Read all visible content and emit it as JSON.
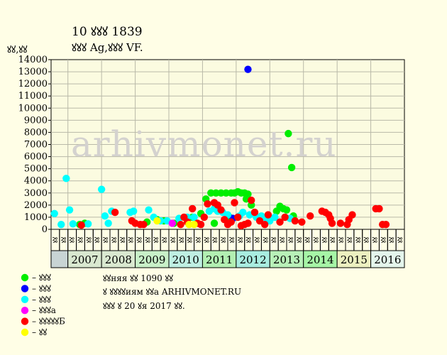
{
  "header": {
    "title": "10 ꙋꙋꙋ 1839",
    "subtitle": "ꙋꙋꙋ Ag,ꙋꙋꙋ VF.",
    "y_unit": "ꙋꙋ,ꙋꙋ"
  },
  "watermark": "arhivmonet.ru",
  "notes": [
    "ꙋꙋняя ꙋꙋ 1090 ꙋꙋ",
    "ꙋ ꙋꙋꙋꙋиям ꙋꙋа ARHIVMONET.RU",
    "ꙋꙋꙋ ꙋ 20 ꙋя 2017 ꙋꙋ."
  ],
  "legend": [
    {
      "label": "– ꙋꙋꙋ",
      "color": "#00ee00",
      "icon": "green-dot-icon"
    },
    {
      "label": "– ꙋꙋꙋ",
      "color": "#0000ff",
      "icon": "blue-dot-icon"
    },
    {
      "label": "– ꙋꙋꙋ",
      "color": "#00ffff",
      "icon": "cyan-dot-icon"
    },
    {
      "label": "– ꙋꙋꙋа",
      "color": "#ff00ff",
      "icon": "magenta-dot-icon"
    },
    {
      "label": "– ꙋꙋꙋꙋꙋБ",
      "color": "#ff0000",
      "icon": "red-dot-icon"
    },
    {
      "label": "– ꙋꙋ",
      "color": "#ffff00",
      "icon": "yellow-dot-icon"
    }
  ],
  "chart_data": {
    "type": "scatter",
    "ylim": [
      0,
      14000
    ],
    "yticks": [
      0,
      1000,
      2000,
      3000,
      4000,
      5000,
      6000,
      7000,
      8000,
      9000,
      10000,
      11000,
      12000,
      13000,
      14000
    ],
    "grid": true,
    "x_range": [
      2006.5,
      2017.0
    ],
    "quarter_labels": [
      "ꙋꙋ",
      "ꙋꙋ",
      "ꙋꙋ",
      "ꙋꙋ"
    ],
    "years": [
      {
        "label": "2007",
        "color": "#d9e8d0"
      },
      {
        "label": "2008",
        "color": "#d9e8d0"
      },
      {
        "label": "2009",
        "color": "#c8f0c8"
      },
      {
        "label": "2010",
        "color": "#bfefe3"
      },
      {
        "label": "2011",
        "color": "#b2efb2"
      },
      {
        "label": "2012",
        "color": "#a8ece0"
      },
      {
        "label": "2013",
        "color": "#b8f0b8"
      },
      {
        "label": "2014",
        "color": "#a6f5a6"
      },
      {
        "label": "2015",
        "color": "#ecf0c0"
      },
      {
        "label": "2016",
        "color": "#e4f5ec"
      }
    ],
    "colors": {
      "green": "#00ee00",
      "blue": "#0000ff",
      "cyan": "#00ffff",
      "magenta": "#ff00ff",
      "red": "#ff0000",
      "yellow": "#ffff00"
    },
    "series": [
      {
        "key": "green",
        "points": [
          [
            2007.35,
            400
          ],
          [
            2007.5,
            500
          ],
          [
            2009.35,
            600
          ],
          [
            2009.65,
            800
          ],
          [
            2009.85,
            700
          ],
          [
            2010.15,
            500
          ],
          [
            2010.7,
            1000
          ],
          [
            2010.95,
            1300
          ],
          [
            2011.1,
            2500
          ],
          [
            2011.25,
            3000
          ],
          [
            2011.35,
            500
          ],
          [
            2011.4,
            3000
          ],
          [
            2011.55,
            3000
          ],
          [
            2011.7,
            3000
          ],
          [
            2011.8,
            1000
          ],
          [
            2011.85,
            3000
          ],
          [
            2011.95,
            3000
          ],
          [
            2012.05,
            3100
          ],
          [
            2012.15,
            3000
          ],
          [
            2012.25,
            3000
          ],
          [
            2012.3,
            2500
          ],
          [
            2012.35,
            2900
          ],
          [
            2012.45,
            2000
          ],
          [
            2012.55,
            1400
          ],
          [
            2013.2,
            1500
          ],
          [
            2013.3,
            1900
          ],
          [
            2013.4,
            1700
          ],
          [
            2013.5,
            1600
          ],
          [
            2013.55,
            7900
          ],
          [
            2013.65,
            5100
          ],
          [
            2013.7,
            1100
          ]
        ]
      },
      {
        "key": "blue",
        "points": [
          [
            2011.9,
            900
          ],
          [
            2012.35,
            13200
          ]
        ]
      },
      {
        "key": "cyan",
        "points": [
          [
            2006.6,
            1300
          ],
          [
            2006.8,
            400
          ],
          [
            2006.95,
            4200
          ],
          [
            2007.05,
            1600
          ],
          [
            2007.15,
            450
          ],
          [
            2007.6,
            450
          ],
          [
            2008.0,
            3300
          ],
          [
            2008.1,
            1100
          ],
          [
            2008.2,
            500
          ],
          [
            2008.3,
            1500
          ],
          [
            2008.85,
            1400
          ],
          [
            2008.95,
            1500
          ],
          [
            2009.4,
            1600
          ],
          [
            2009.55,
            1000
          ],
          [
            2009.75,
            700
          ],
          [
            2009.95,
            700
          ],
          [
            2010.3,
            900
          ],
          [
            2010.55,
            1000
          ],
          [
            2010.75,
            1000
          ],
          [
            2011.2,
            1500
          ],
          [
            2011.35,
            1700
          ],
          [
            2011.45,
            1500
          ],
          [
            2011.6,
            1400
          ],
          [
            2011.75,
            1200
          ],
          [
            2012.1,
            1100
          ],
          [
            2012.2,
            1400
          ],
          [
            2012.4,
            1200
          ],
          [
            2012.6,
            1000
          ],
          [
            2012.75,
            1100
          ],
          [
            2012.9,
            900
          ],
          [
            2013.0,
            700
          ],
          [
            2013.15,
            1000
          ],
          [
            2013.45,
            1000
          ],
          [
            2013.6,
            900
          ]
        ]
      },
      {
        "key": "magenta",
        "points": [
          [
            2010.1,
            500
          ]
        ]
      },
      {
        "key": "red",
        "points": [
          [
            2007.4,
            350
          ],
          [
            2008.4,
            1400
          ],
          [
            2008.9,
            700
          ],
          [
            2009.0,
            500
          ],
          [
            2009.15,
            400
          ],
          [
            2009.25,
            400
          ],
          [
            2010.35,
            400
          ],
          [
            2010.45,
            1000
          ],
          [
            2010.55,
            600
          ],
          [
            2010.7,
            1700
          ],
          [
            2010.85,
            500
          ],
          [
            2010.95,
            400
          ],
          [
            2011.05,
            1000
          ],
          [
            2011.15,
            2100
          ],
          [
            2011.35,
            2200
          ],
          [
            2011.45,
            2000
          ],
          [
            2011.55,
            1600
          ],
          [
            2011.65,
            800
          ],
          [
            2011.75,
            400
          ],
          [
            2011.85,
            600
          ],
          [
            2011.95,
            2200
          ],
          [
            2012.05,
            1000
          ],
          [
            2012.15,
            300
          ],
          [
            2012.25,
            400
          ],
          [
            2012.35,
            500
          ],
          [
            2012.45,
            2400
          ],
          [
            2012.55,
            1400
          ],
          [
            2012.7,
            700
          ],
          [
            2012.85,
            400
          ],
          [
            2012.95,
            1200
          ],
          [
            2013.3,
            600
          ],
          [
            2013.45,
            1000
          ],
          [
            2013.75,
            700
          ],
          [
            2013.95,
            600
          ],
          [
            2014.2,
            1100
          ],
          [
            2014.55,
            1500
          ],
          [
            2014.65,
            1400
          ],
          [
            2014.75,
            1200
          ],
          [
            2014.8,
            900
          ],
          [
            2014.85,
            500
          ],
          [
            2015.1,
            500
          ],
          [
            2015.3,
            400
          ],
          [
            2015.35,
            800
          ],
          [
            2015.45,
            1200
          ],
          [
            2016.15,
            1700
          ],
          [
            2016.25,
            1700
          ],
          [
            2016.35,
            400
          ],
          [
            2016.45,
            400
          ]
        ]
      },
      {
        "key": "yellow",
        "points": [
          [
            2009.65,
            700
          ],
          [
            2010.6,
            400
          ],
          [
            2010.75,
            400
          ]
        ]
      }
    ]
  }
}
